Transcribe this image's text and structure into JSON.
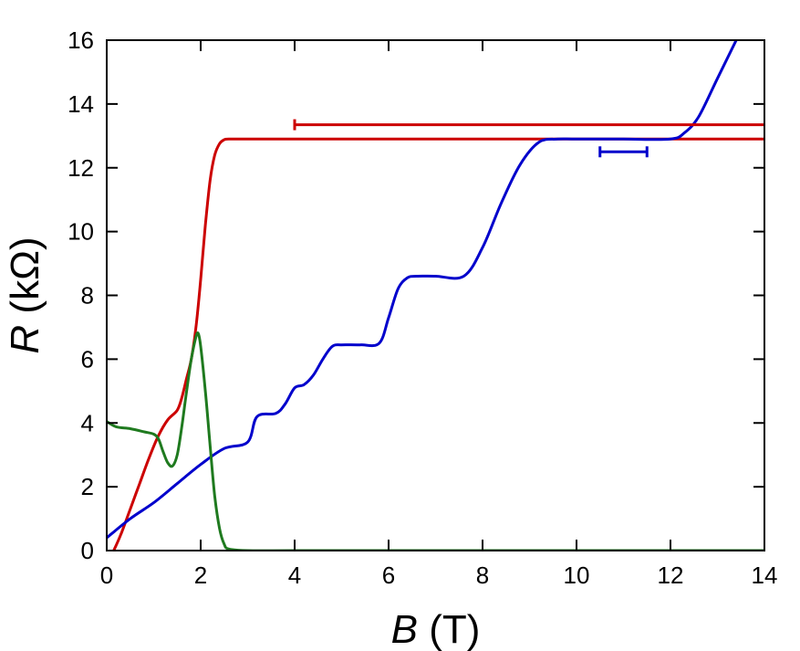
{
  "chart_data": {
    "type": "line",
    "xlabel_var": "B",
    "xlabel_unit": " (T)",
    "ylabel_var": "R",
    "ylabel_unit": " (kΩ)",
    "xlim": [
      0,
      14
    ],
    "ylim": [
      0,
      16
    ],
    "xticks": [
      0,
      2,
      4,
      6,
      8,
      10,
      12,
      14
    ],
    "yticks": [
      0,
      2,
      4,
      6,
      8,
      10,
      12,
      14,
      16
    ],
    "grid": false,
    "legend": "none",
    "series": [
      {
        "color": "#cc0000",
        "x": [
          0.15,
          0.3,
          0.5,
          0.7,
          0.9,
          1.1,
          1.3,
          1.5,
          1.6,
          1.7,
          1.8,
          1.9,
          2.0,
          2.1,
          2.2,
          2.3,
          2.4,
          2.5,
          2.6,
          3.0,
          4.0,
          6.0,
          8.0,
          10.0,
          12.0,
          14.0
        ],
        "y": [
          0.0,
          0.5,
          1.3,
          2.1,
          2.9,
          3.6,
          4.1,
          4.4,
          4.8,
          5.4,
          6.0,
          7.0,
          8.5,
          10.2,
          11.6,
          12.4,
          12.75,
          12.88,
          12.9,
          12.9,
          12.9,
          12.9,
          12.9,
          12.9,
          12.9,
          12.9
        ]
      },
      {
        "color": "#0000cc",
        "x": [
          0.0,
          0.5,
          1.0,
          1.5,
          2.0,
          2.5,
          3.0,
          3.2,
          3.6,
          3.8,
          4.0,
          4.2,
          4.4,
          4.6,
          4.8,
          5.0,
          5.4,
          5.8,
          6.0,
          6.2,
          6.4,
          6.6,
          7.0,
          7.6,
          8.0,
          8.4,
          8.8,
          9.2,
          9.6,
          10.0,
          11.0,
          12.0,
          12.3,
          12.6,
          13.0,
          13.4
        ],
        "y": [
          0.4,
          1.0,
          1.5,
          2.1,
          2.7,
          3.2,
          3.4,
          4.2,
          4.3,
          4.6,
          5.1,
          5.2,
          5.5,
          6.0,
          6.4,
          6.45,
          6.45,
          6.5,
          7.3,
          8.2,
          8.55,
          8.6,
          8.6,
          8.6,
          9.5,
          10.9,
          12.1,
          12.8,
          12.9,
          12.9,
          12.9,
          12.9,
          13.1,
          13.6,
          14.8,
          16.0
        ]
      },
      {
        "color": "#1f7a1f",
        "x": [
          0.0,
          0.2,
          0.5,
          0.8,
          1.0,
          1.1,
          1.2,
          1.3,
          1.4,
          1.5,
          1.6,
          1.7,
          1.8,
          1.9,
          1.95,
          2.0,
          2.1,
          2.2,
          2.3,
          2.4,
          2.5,
          2.6,
          3.0,
          4.0,
          6.0,
          8.0,
          10.0,
          12.0,
          14.0
        ],
        "y": [
          4.05,
          3.88,
          3.82,
          3.72,
          3.65,
          3.5,
          3.1,
          2.75,
          2.65,
          3.0,
          3.9,
          5.0,
          6.0,
          6.7,
          6.8,
          6.4,
          5.0,
          3.3,
          1.7,
          0.7,
          0.2,
          0.05,
          0.0,
          0.0,
          0.0,
          0.0,
          0.0,
          0.0,
          0.0
        ]
      }
    ],
    "error_bars": [
      {
        "color": "#cc0000",
        "y": 13.35,
        "x_from": 4.0,
        "x_to": 14.0
      },
      {
        "color": "#0000cc",
        "y": 12.5,
        "x_from": 10.5,
        "x_to": 11.5
      }
    ]
  }
}
